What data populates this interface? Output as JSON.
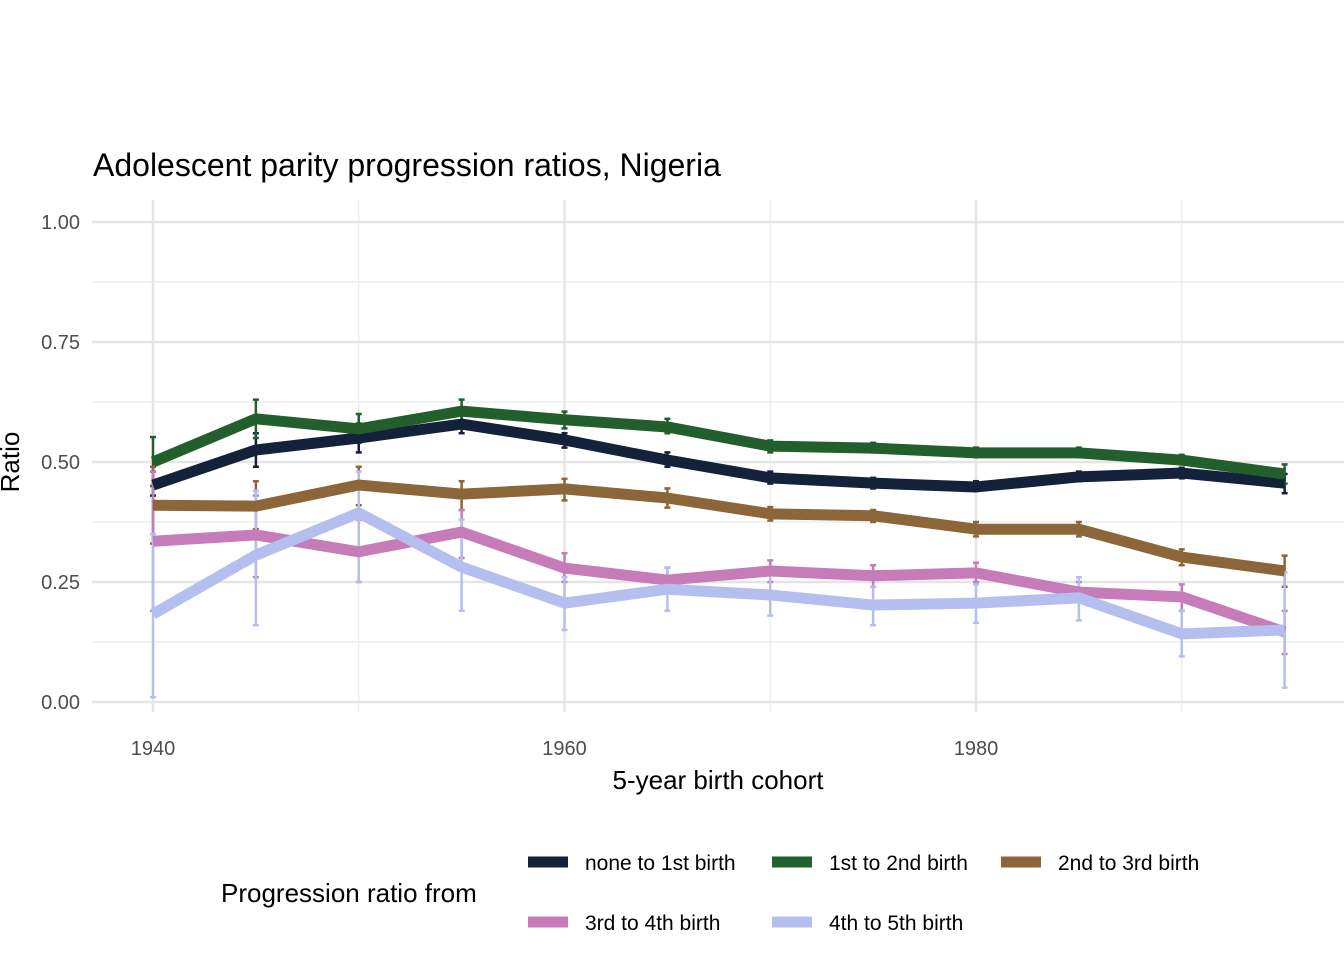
{
  "chart_data": {
    "type": "line",
    "title": "Adolescent parity progression ratios,  Nigeria",
    "xlabel": "5-year birth cohort",
    "ylabel": "Ratio",
    "xlim": [
      1938,
      1997
    ],
    "ylim": [
      -0.02,
      1.03
    ],
    "x_ticks": [
      1940,
      1960,
      1980
    ],
    "x_tick_labels": [
      "1940",
      "1960",
      "1980"
    ],
    "y_ticks": [
      0,
      0.25,
      0.5,
      0.75,
      1
    ],
    "y_tick_labels": [
      "0.00",
      "0.25",
      "0.50",
      "0.75",
      "1.00"
    ],
    "grid": true,
    "legend_title": "Progression ratio from",
    "legend_position": "bottom",
    "x": [
      1940,
      1945,
      1950,
      1955,
      1960,
      1965,
      1970,
      1975,
      1980,
      1985,
      1990,
      1995
    ],
    "series": [
      {
        "name": "none to 1st birth",
        "color": "#14213a",
        "values": [
          0.452,
          0.525,
          0.55,
          0.579,
          0.546,
          0.504,
          0.467,
          0.456,
          0.448,
          0.469,
          0.477,
          0.456
        ],
        "lower": [
          0.43,
          0.49,
          0.52,
          0.56,
          0.53,
          0.49,
          0.455,
          0.445,
          0.44,
          0.46,
          0.466,
          0.435
        ],
        "upper": [
          0.48,
          0.56,
          0.58,
          0.6,
          0.56,
          0.52,
          0.48,
          0.467,
          0.46,
          0.48,
          0.488,
          0.475
        ]
      },
      {
        "name": "1st to 2nd birth",
        "color": "#235f2c",
        "values": [
          0.5,
          0.59,
          0.569,
          0.606,
          0.588,
          0.573,
          0.533,
          0.529,
          0.519,
          0.519,
          0.504,
          0.475
        ],
        "lower": [
          0.45,
          0.55,
          0.54,
          0.585,
          0.57,
          0.56,
          0.52,
          0.52,
          0.51,
          0.51,
          0.495,
          0.455
        ],
        "upper": [
          0.552,
          0.63,
          0.6,
          0.63,
          0.605,
          0.59,
          0.545,
          0.54,
          0.53,
          0.53,
          0.515,
          0.495
        ]
      },
      {
        "name": "2nd to 3rd birth",
        "color": "#8c6539",
        "values": [
          0.41,
          0.408,
          0.452,
          0.433,
          0.444,
          0.425,
          0.392,
          0.388,
          0.36,
          0.36,
          0.302,
          0.273
        ],
        "lower": [
          0.33,
          0.36,
          0.41,
          0.4,
          0.42,
          0.405,
          0.378,
          0.375,
          0.345,
          0.345,
          0.285,
          0.24
        ],
        "upper": [
          0.49,
          0.46,
          0.49,
          0.46,
          0.465,
          0.445,
          0.406,
          0.4,
          0.375,
          0.375,
          0.318,
          0.305
        ]
      },
      {
        "name": "3rd to 4th birth",
        "color": "#c77cba",
        "values": [
          0.335,
          0.348,
          0.313,
          0.354,
          0.279,
          0.254,
          0.273,
          0.263,
          0.269,
          0.229,
          0.219,
          0.146
        ],
        "lower": [
          0.19,
          0.26,
          0.25,
          0.3,
          0.25,
          0.23,
          0.25,
          0.24,
          0.25,
          0.21,
          0.19,
          0.1
        ],
        "upper": [
          0.48,
          0.43,
          0.38,
          0.4,
          0.31,
          0.28,
          0.295,
          0.285,
          0.29,
          0.25,
          0.245,
          0.19
        ]
      },
      {
        "name": "4th to 5th birth",
        "color": "#b4bff0",
        "values": [
          0.183,
          0.306,
          0.394,
          0.281,
          0.206,
          0.235,
          0.223,
          0.202,
          0.206,
          0.217,
          0.142,
          0.15
        ],
        "lower": [
          0.01,
          0.16,
          0.25,
          0.19,
          0.15,
          0.19,
          0.18,
          0.16,
          0.165,
          0.17,
          0.095,
          0.03
        ],
        "upper": [
          0.35,
          0.44,
          0.48,
          0.38,
          0.26,
          0.28,
          0.265,
          0.24,
          0.245,
          0.26,
          0.19,
          0.27
        ]
      }
    ]
  }
}
